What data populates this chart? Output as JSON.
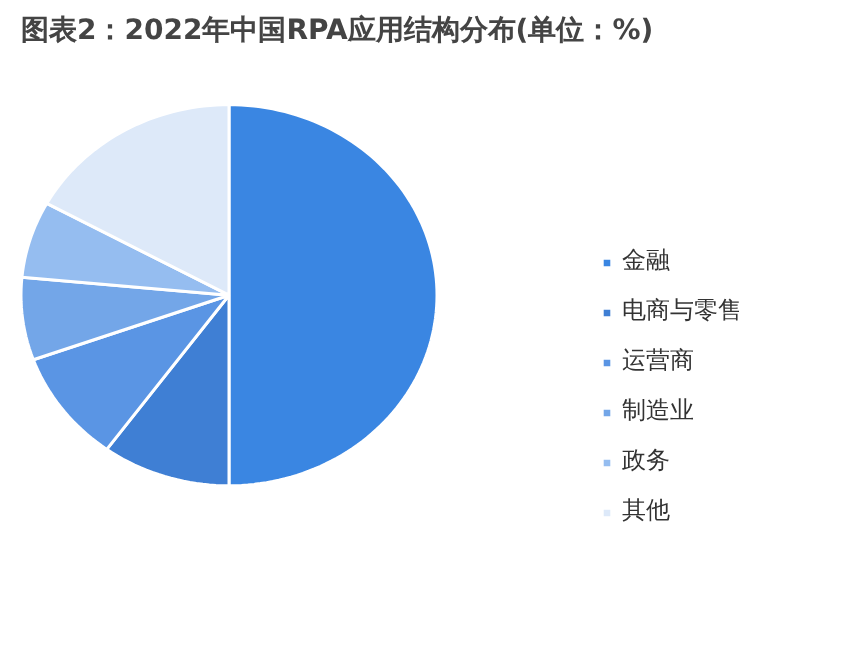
{
  "chart_data": {
    "type": "pie",
    "title": "图表2：2022年中国RPA应用结构分布(单位：%)",
    "categories": [
      "金融",
      "电商与零售",
      "运营商",
      "制造业",
      "政务",
      "其他"
    ],
    "values": [
      50,
      10,
      9.5,
      7,
      6.5,
      17
    ],
    "colors": [
      "#3a86e2",
      "#3f7fd4",
      "#5a95e4",
      "#73a6e8",
      "#95bdf0",
      "#dde9f9"
    ],
    "legend": "right"
  }
}
